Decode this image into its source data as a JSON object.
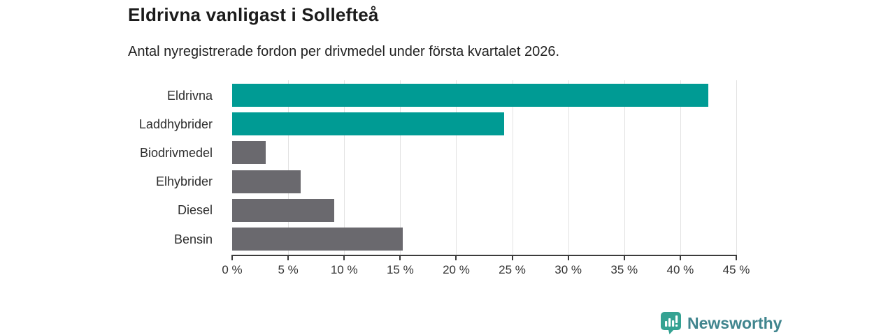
{
  "header": {
    "title": "Eldrivna vanligast i Sollefteå",
    "subtitle": "Antal nyregistrerade fordon per drivmedel under första kvartalet 2026."
  },
  "chart_data": {
    "type": "bar",
    "orientation": "horizontal",
    "title": "Eldrivna vanligast i Sollefteå",
    "subtitle": "Antal nyregistrerade fordon per drivmedel under första kvartalet 2026.",
    "categories": [
      "Eldrivna",
      "Laddhybrider",
      "Biodrivmedel",
      "Elhybrider",
      "Diesel",
      "Bensin"
    ],
    "values": [
      42.5,
      24.3,
      3.0,
      6.1,
      9.1,
      15.2
    ],
    "highlighted": [
      true,
      true,
      false,
      false,
      false,
      false
    ],
    "unit": "%",
    "xlim": [
      0,
      45
    ],
    "tick_values": [
      0,
      5,
      10,
      15,
      20,
      25,
      30,
      35,
      40,
      45
    ],
    "tick_labels": [
      "0 %",
      "5 %",
      "10 %",
      "15 %",
      "20 %",
      "25 %",
      "30 %",
      "35 %",
      "40 %",
      "45 %"
    ],
    "grid": true,
    "legend": "none",
    "colors": {
      "highlight": "#009B94",
      "default": "#6A696E",
      "gridline": "#e2e2e2",
      "axis": "#3b3b3b"
    }
  },
  "branding": {
    "logo_text": "Newsworthy",
    "logo_text_color": "#40858E",
    "logo_icon": "newsworthy-pin-barchart-icon",
    "logo_icon_color": "#35A292"
  }
}
